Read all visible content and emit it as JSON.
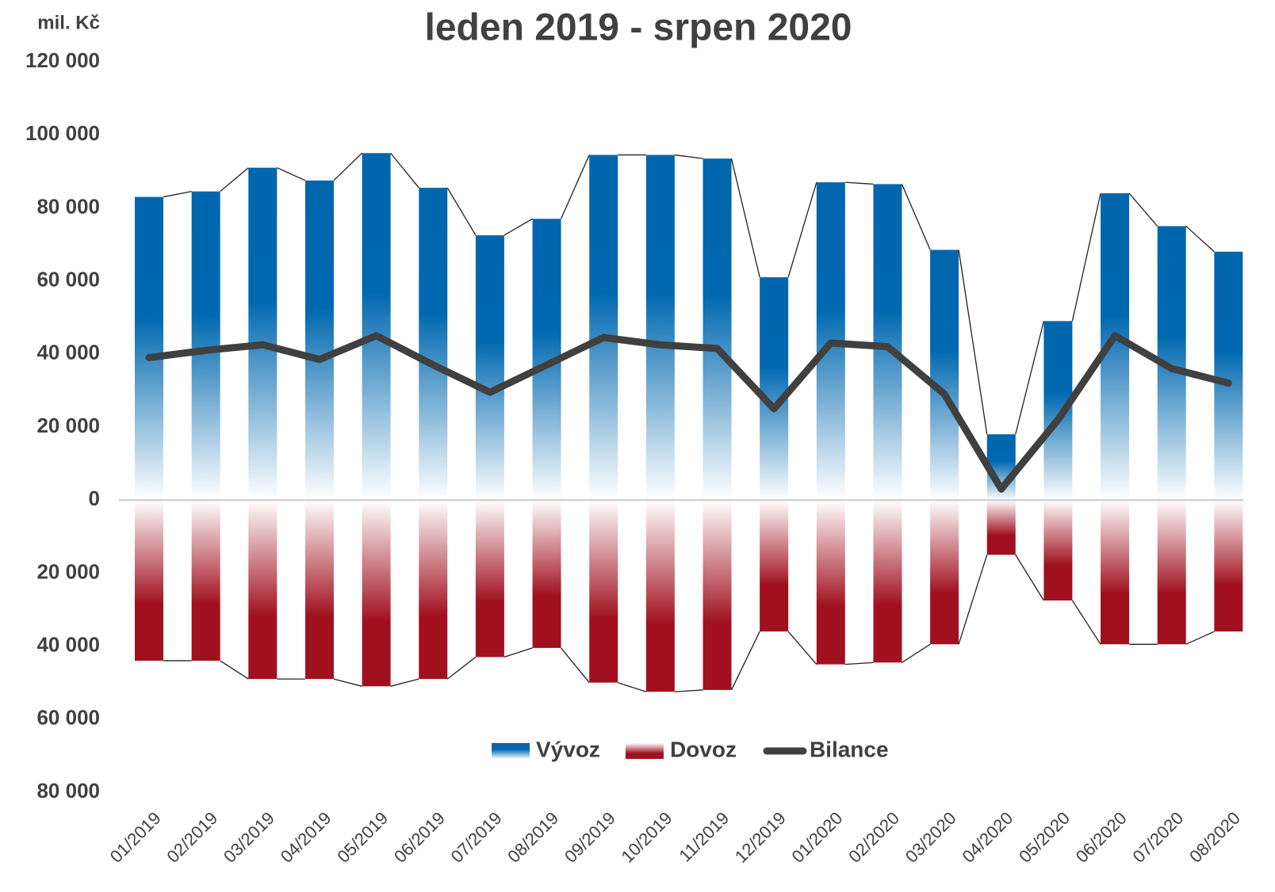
{
  "chart_data": {
    "type": "bar",
    "title": "leden 2019 - srpen 2020",
    "y_label": "mil. Kč",
    "categories": [
      "01/2019",
      "02/2019",
      "03/2019",
      "04/2019",
      "05/2019",
      "06/2019",
      "07/2019",
      "08/2019",
      "09/2019",
      "10/2019",
      "11/2019",
      "12/2019",
      "01/2020",
      "02/2020",
      "03/2020",
      "04/2020",
      "05/2020",
      "06/2020",
      "07/2020",
      "08/2020"
    ],
    "series": [
      {
        "name": "Vývoz",
        "type": "bar",
        "color": "#0068b0",
        "values": [
          83000,
          84500,
          91000,
          87500,
          95000,
          85500,
          72500,
          77000,
          94500,
          94500,
          93500,
          61000,
          87000,
          86500,
          68500,
          18000,
          49000,
          84000,
          75000,
          68000
        ]
      },
      {
        "name": "Dovoz",
        "type": "bar",
        "color": "#a0101e",
        "values": [
          -44000,
          -44000,
          -49000,
          -49000,
          -51000,
          -49000,
          -43000,
          -40500,
          -50000,
          -52500,
          -52000,
          -36000,
          -45000,
          -44500,
          -39500,
          -15000,
          -27500,
          -39500,
          -39500,
          -36000
        ]
      },
      {
        "name": "Bilance",
        "type": "line",
        "color": "#404040",
        "values": [
          39000,
          41000,
          42500,
          38500,
          45000,
          37000,
          29500,
          37000,
          44500,
          42500,
          41500,
          25000,
          43000,
          42000,
          29000,
          3000,
          22000,
          45000,
          36000,
          32000
        ]
      }
    ],
    "ylim": [
      -80000,
      120000
    ],
    "yticks": [
      {
        "value": 120000,
        "label": "120 000"
      },
      {
        "value": 100000,
        "label": "100 000"
      },
      {
        "value": 80000,
        "label": "80 000"
      },
      {
        "value": 60000,
        "label": "60 000"
      },
      {
        "value": 40000,
        "label": "40 000"
      },
      {
        "value": 20000,
        "label": "20 000"
      },
      0,
      {
        "value": -20000,
        "label": "20 000"
      },
      {
        "value": -40000,
        "label": "40 000"
      },
      {
        "value": -60000,
        "label": "60 000"
      },
      {
        "value": -80000,
        "label": "80 000"
      }
    ],
    "grid": false,
    "legend": "bottom"
  }
}
